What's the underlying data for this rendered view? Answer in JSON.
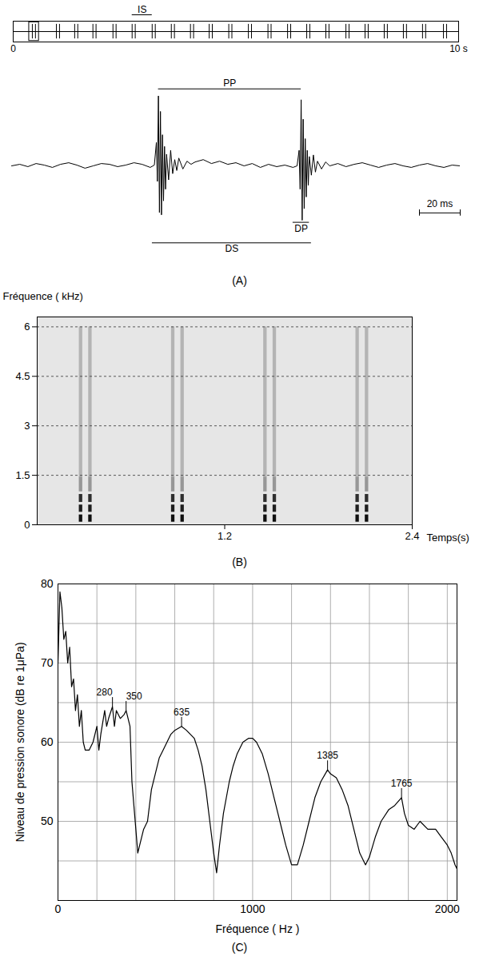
{
  "chart_data": [
    {
      "type": "trace",
      "color": "#000000",
      "xlim": [
        0,
        10
      ],
      "xticks": [
        0,
        {
          "value": 10,
          "label": "10 s"
        }
      ],
      "pulses": [
        0.43,
        0.5,
        0.97,
        1.04,
        1.38,
        1.45,
        1.79,
        1.86,
        2.24,
        2.31,
        2.67,
        2.74,
        3.12,
        3.19,
        3.55,
        3.62,
        3.98,
        4.05,
        4.4,
        4.47,
        4.84,
        4.91,
        5.28,
        5.35,
        5.72,
        5.79,
        6.16,
        6.23,
        6.59,
        6.66,
        7.02,
        7.09,
        7.47,
        7.54,
        7.9,
        7.97,
        8.33,
        8.4,
        8.76,
        8.83,
        9.19,
        9.26,
        9.66,
        9.73
      ],
      "zoom_window": [
        0.358,
        0.578
      ],
      "annotations": [
        {
          "label": "IS",
          "start": 2.67,
          "end": 3.12
        }
      ]
    },
    {
      "type": "waveform",
      "color": "#000000",
      "tick_labels": false,
      "xlim": [
        0,
        220
      ],
      "ylim": [
        -110,
        110
      ],
      "x": [
        0,
        4,
        8,
        12,
        16,
        20,
        24,
        28,
        32,
        36,
        40,
        44,
        48,
        52,
        56,
        60,
        64,
        68,
        70,
        71,
        71.5,
        72,
        72.5,
        73,
        73.5,
        74,
        74.5,
        75,
        75.5,
        76,
        77,
        78,
        79,
        80,
        81,
        82,
        84,
        86,
        88,
        90,
        94,
        98,
        102,
        106,
        110,
        114,
        118,
        122,
        126,
        130,
        134,
        138,
        140,
        141,
        141.5,
        142,
        142.5,
        143,
        143.5,
        144,
        144.5,
        145,
        145.5,
        146,
        147,
        148,
        149,
        150,
        152,
        154,
        156,
        160,
        164,
        168,
        172,
        176,
        180,
        184,
        188,
        192,
        196,
        200,
        204,
        208,
        212,
        216,
        220
      ],
      "values": [
        0,
        2,
        -1,
        3,
        1,
        -2,
        2,
        4,
        1,
        -3,
        0,
        3,
        2,
        -1,
        1,
        4,
        2,
        -2,
        1,
        30,
        -20,
        90,
        -60,
        70,
        -63,
        40,
        -45,
        25,
        -30,
        15,
        -18,
        20,
        -10,
        8,
        -6,
        10,
        -4,
        6,
        2,
        5,
        8,
        3,
        6,
        2,
        4,
        0,
        3,
        -2,
        2,
        -1,
        1,
        -2,
        0,
        20,
        -30,
        85,
        -70,
        60,
        -55,
        35,
        -40,
        20,
        -25,
        12,
        -12,
        14,
        -8,
        6,
        -4,
        5,
        0,
        3,
        -1,
        2,
        4,
        1,
        -2,
        1,
        3,
        0,
        -2,
        1,
        3,
        0,
        -2,
        1,
        0
      ],
      "annotations": [
        {
          "label": "PP",
          "start": 72,
          "end": 142
        },
        {
          "label": "DP",
          "start": 138,
          "end": 146
        },
        {
          "label": "DS",
          "start": 69,
          "end": 147
        }
      ],
      "scale_bar": {
        "length": 20,
        "label": "20 ms"
      },
      "panel_label": "(A)"
    },
    {
      "type": "spectrogram",
      "xlabel": "Temps(s)",
      "ylabel": "Fréquence ( kHz)",
      "xlim": [
        0,
        2.4
      ],
      "xticks": [
        1.2,
        2.4
      ],
      "ylim": [
        0,
        6.3
      ],
      "yticks": [
        0,
        1.5,
        3,
        4.5,
        6
      ],
      "grid": true,
      "pulses": [
        0.28,
        0.34,
        0.87,
        0.93,
        1.46,
        1.52,
        2.05,
        2.11
      ],
      "pulse_duration": 0.022,
      "bands": [
        {
          "low": 0.08,
          "high": 0.3,
          "intensity": 0.95
        },
        {
          "low": 0.38,
          "high": 0.6,
          "intensity": 0.9
        },
        {
          "low": 0.68,
          "high": 0.92,
          "intensity": 0.85
        },
        {
          "low": 1.0,
          "high": 1.45,
          "intensity": 0.5
        },
        {
          "low": 1.45,
          "high": 6.0,
          "intensity": 0.4
        }
      ],
      "panel_label": "(B)"
    },
    {
      "type": "line",
      "color": "#000000",
      "xlabel": "Fréquence ( Hz )",
      "ylabel": "Niveau de pression sonore (dB re 1μPa)",
      "xlim": [
        0,
        2050
      ],
      "xticks": [
        0,
        1000,
        2000
      ],
      "ylim": [
        40,
        80
      ],
      "yticks": [
        50,
        60,
        70,
        80
      ],
      "grid": true,
      "x": [
        0,
        10,
        20,
        30,
        40,
        50,
        60,
        70,
        80,
        90,
        100,
        110,
        120,
        130,
        140,
        160,
        180,
        200,
        210,
        220,
        240,
        250,
        260,
        280,
        290,
        300,
        320,
        340,
        350,
        370,
        380,
        400,
        410,
        420,
        440,
        460,
        480,
        500,
        520,
        540,
        560,
        580,
        600,
        635,
        660,
        700,
        720,
        740,
        760,
        780,
        800,
        815,
        830,
        850,
        880,
        900,
        920,
        950,
        980,
        1000,
        1020,
        1050,
        1080,
        1110,
        1140,
        1170,
        1200,
        1230,
        1260,
        1290,
        1320,
        1350,
        1385,
        1400,
        1430,
        1460,
        1490,
        1520,
        1550,
        1580,
        1600,
        1630,
        1660,
        1700,
        1730,
        1765,
        1780,
        1800,
        1830,
        1860,
        1900,
        1940,
        1970,
        2000,
        2020,
        2040,
        2050
      ],
      "values": [
        70,
        79,
        77,
        73,
        74,
        70,
        72,
        67,
        68,
        64,
        66,
        62,
        64,
        60,
        59,
        59,
        60,
        62,
        59,
        61,
        64,
        62,
        63,
        64.5,
        62,
        64,
        63,
        63.5,
        64,
        62,
        55,
        49,
        46,
        47,
        49,
        50,
        54,
        56,
        58,
        59,
        60,
        61,
        61.5,
        62,
        61.5,
        60.5,
        59,
        57,
        54,
        50,
        46,
        43.5,
        47,
        51,
        55,
        57,
        58.5,
        60,
        60.5,
        60.5,
        60,
        58.5,
        56,
        53,
        50,
        47,
        44.5,
        44.5,
        47,
        50,
        53,
        55,
        56.5,
        56,
        55.5,
        54,
        52,
        49,
        46,
        44.5,
        45.5,
        48,
        50,
        51.5,
        52,
        53,
        51,
        49.5,
        49,
        50,
        49,
        49,
        48,
        47,
        46,
        44.5,
        44
      ],
      "peaks": [
        {
          "x": 280,
          "y": 64.5
        },
        {
          "x": 350,
          "y": 64
        },
        {
          "x": 635,
          "y": 62
        },
        {
          "x": 1385,
          "y": 56.5
        },
        {
          "x": 1765,
          "y": 53
        }
      ],
      "panel_label": "(C)"
    }
  ]
}
